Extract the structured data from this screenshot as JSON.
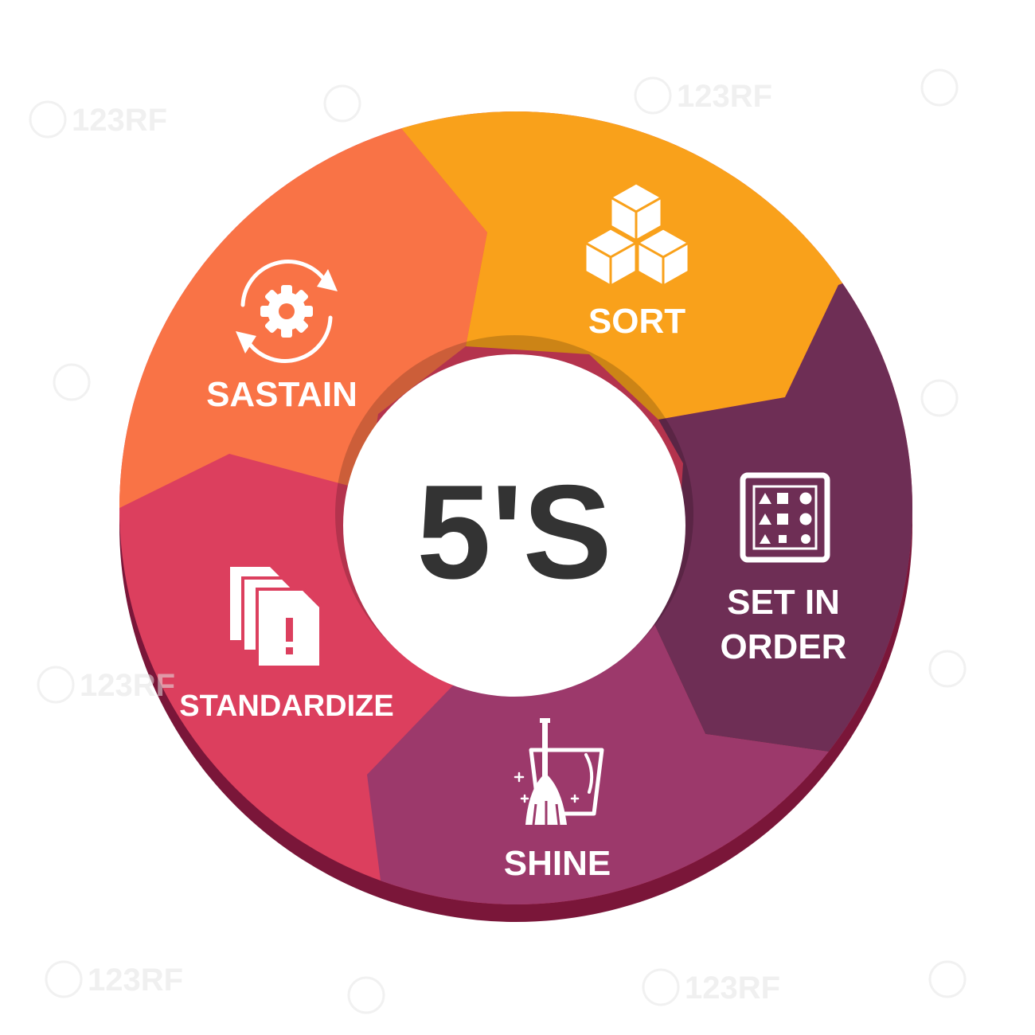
{
  "diagram": {
    "center_label": "5'S",
    "segments": [
      {
        "id": "sort",
        "label": "SORT",
        "color": "#F9A11B",
        "icon": "cubes-icon"
      },
      {
        "id": "set-in-order",
        "label_lines": [
          "SET IN",
          "ORDER"
        ],
        "color": "#6E2E55",
        "icon": "shape-grid-icon"
      },
      {
        "id": "shine",
        "label": "SHINE",
        "color": "#9C396B",
        "icon": "broom-bucket-icon"
      },
      {
        "id": "standardize",
        "label": "STANDARDIZE",
        "color": "#DC3F5E",
        "icon": "documents-alert-icon"
      },
      {
        "id": "sastain",
        "label": "SASTAIN",
        "color": "#F97346",
        "icon": "gear-cycle-icon"
      }
    ],
    "rim_color": "#7A1639",
    "center_color": "#ffffff",
    "text_color": "#ffffff",
    "center_text_color": "#333333"
  },
  "watermark": {
    "text": "123RF"
  }
}
